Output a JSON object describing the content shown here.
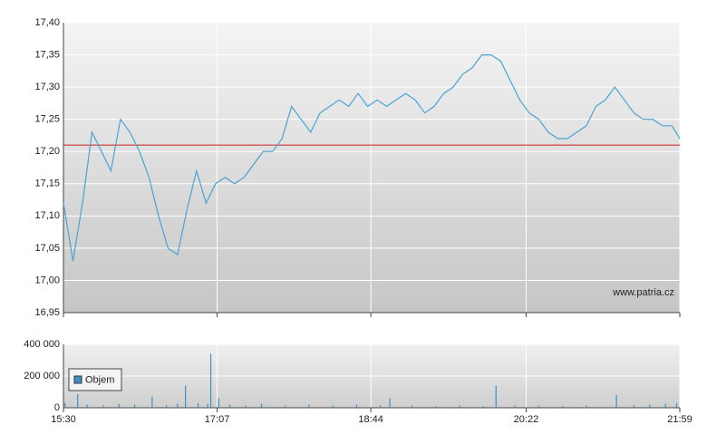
{
  "chart_data": [
    {
      "type": "line",
      "annotation": "www.patria.cz",
      "x": [
        "15:30",
        "15:36",
        "15:42",
        "15:48",
        "15:54",
        "16:00",
        "16:06",
        "16:12",
        "16:18",
        "16:24",
        "16:30",
        "16:36",
        "16:42",
        "16:48",
        "16:54",
        "17:00",
        "17:06",
        "17:12",
        "17:18",
        "17:24",
        "17:30",
        "17:36",
        "17:42",
        "17:48",
        "17:54",
        "18:00",
        "18:06",
        "18:12",
        "18:18",
        "18:24",
        "18:30",
        "18:36",
        "18:42",
        "18:48",
        "18:54",
        "19:00",
        "19:06",
        "19:12",
        "19:18",
        "19:24",
        "19:30",
        "19:36",
        "19:42",
        "19:48",
        "19:54",
        "20:00",
        "20:06",
        "20:12",
        "20:18",
        "20:24",
        "20:30",
        "20:36",
        "20:42",
        "20:48",
        "20:54",
        "21:00",
        "21:06",
        "21:12",
        "21:18",
        "21:24",
        "21:30",
        "21:36",
        "21:42",
        "21:48",
        "21:54",
        "21:59"
      ],
      "series": [
        {
          "color": "#4aa3d3",
          "values": [
            17.12,
            17.03,
            17.12,
            17.23,
            17.2,
            17.17,
            17.25,
            17.23,
            17.2,
            17.16,
            17.1,
            17.05,
            17.04,
            17.11,
            17.17,
            17.12,
            17.15,
            17.16,
            17.15,
            17.16,
            17.18,
            17.2,
            17.2,
            17.22,
            17.27,
            17.25,
            17.23,
            17.26,
            17.27,
            17.28,
            17.27,
            17.29,
            17.27,
            17.28,
            17.27,
            17.28,
            17.29,
            17.28,
            17.26,
            17.27,
            17.29,
            17.3,
            17.32,
            17.33,
            17.35,
            17.35,
            17.34,
            17.31,
            17.28,
            17.26,
            17.25,
            17.23,
            17.22,
            17.22,
            17.23,
            17.24,
            17.27,
            17.28,
            17.3,
            17.28,
            17.26,
            17.25,
            17.25,
            17.24,
            17.24,
            17.22
          ]
        }
      ],
      "reference_line": {
        "value": 17.21,
        "color": "#cc2222"
      },
      "xlim": [
        "15:30",
        "21:59"
      ],
      "xticks": [
        "15:30",
        "17:07",
        "18:44",
        "20:22",
        "21:59"
      ],
      "ylim": [
        16.95,
        17.4
      ],
      "yticks": [
        {
          "value": 16.95,
          "label": "16,95"
        },
        {
          "value": 17.0,
          "label": "17,00"
        },
        {
          "value": 17.05,
          "label": "17,05"
        },
        {
          "value": 17.1,
          "label": "17,10"
        },
        {
          "value": 17.15,
          "label": "17,15"
        },
        {
          "value": 17.2,
          "label": "17,20"
        },
        {
          "value": 17.25,
          "label": "17,25"
        },
        {
          "value": 17.3,
          "label": "17,30"
        },
        {
          "value": 17.35,
          "label": "17,35"
        },
        {
          "value": 17.4,
          "label": "17,40"
        }
      ],
      "grid": true
    },
    {
      "type": "bar",
      "x": [
        "15:31",
        "15:39",
        "15:45",
        "15:55",
        "16:05",
        "16:15",
        "16:26",
        "16:35",
        "16:42",
        "16:47",
        "16:55",
        "17:01",
        "17:03",
        "17:08",
        "17:15",
        "17:25",
        "17:35",
        "17:50",
        "18:05",
        "18:20",
        "18:35",
        "18:50",
        "18:56",
        "19:10",
        "19:25",
        "19:40",
        "19:55",
        "20:03",
        "20:15",
        "20:30",
        "20:45",
        "21:00",
        "21:19",
        "21:30",
        "21:40",
        "21:50",
        "21:57"
      ],
      "series": [
        {
          "name": "Objem",
          "color": "#3d8fc4",
          "values": [
            30000,
            85000,
            20000,
            15000,
            25000,
            20000,
            70000,
            15000,
            25000,
            140000,
            30000,
            25000,
            340000,
            60000,
            20000,
            15000,
            25000,
            15000,
            20000,
            15000,
            20000,
            15000,
            60000,
            15000,
            10000,
            15000,
            10000,
            140000,
            15000,
            15000,
            10000,
            15000,
            80000,
            15000,
            20000,
            25000,
            30000
          ]
        }
      ],
      "xlim": [
        "15:30",
        "21:59"
      ],
      "xticks": [
        "15:30",
        "17:07",
        "18:44",
        "20:22",
        "21:59"
      ],
      "ylim": [
        0,
        400000
      ],
      "yticks": [
        0,
        {
          "value": 200000,
          "label": "200 000"
        },
        {
          "value": 400000,
          "label": "400 000"
        }
      ],
      "grid": true
    }
  ]
}
